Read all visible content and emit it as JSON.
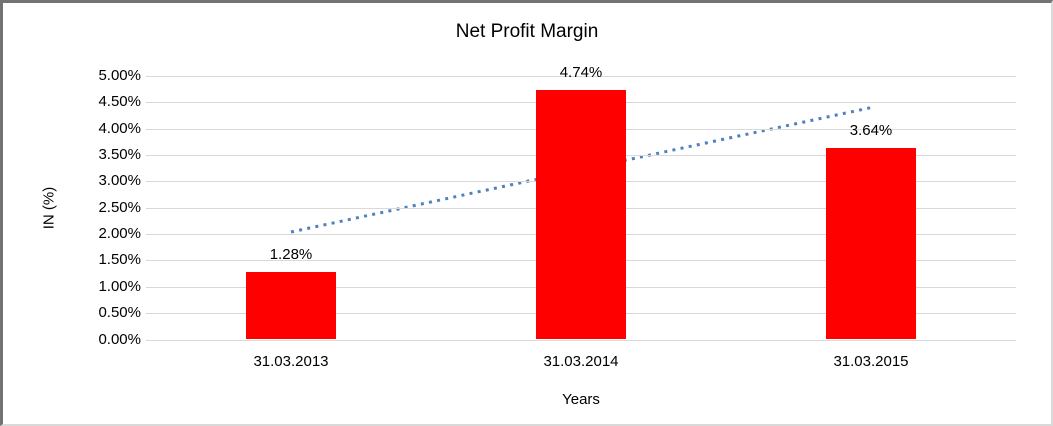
{
  "chart_data": {
    "type": "bar",
    "title": "Net Profit Margin",
    "xlabel": "Years",
    "ylabel": "IN (%)",
    "categories": [
      "31.03.2013",
      "31.03.2014",
      "31.03.2015"
    ],
    "values": [
      1.28,
      4.74,
      3.64
    ],
    "data_labels": [
      "1.28%",
      "4.74%",
      "3.64%"
    ],
    "ylim": [
      0,
      5
    ],
    "ytick_step": 0.5,
    "ytick_labels": [
      "0.00%",
      "0.50%",
      "1.00%",
      "1.50%",
      "2.00%",
      "2.50%",
      "3.00%",
      "3.50%",
      "4.00%",
      "4.50%",
      "5.00%"
    ],
    "grid": true,
    "legend": "none",
    "bar_color": "#ff0000",
    "gridline_color": "#d9d9d9",
    "text_color": "#000000",
    "trendline": {
      "type": "linear",
      "style": "dotted",
      "color": "#4f81bd",
      "start_value": 2.04,
      "end_value": 4.4
    }
  }
}
